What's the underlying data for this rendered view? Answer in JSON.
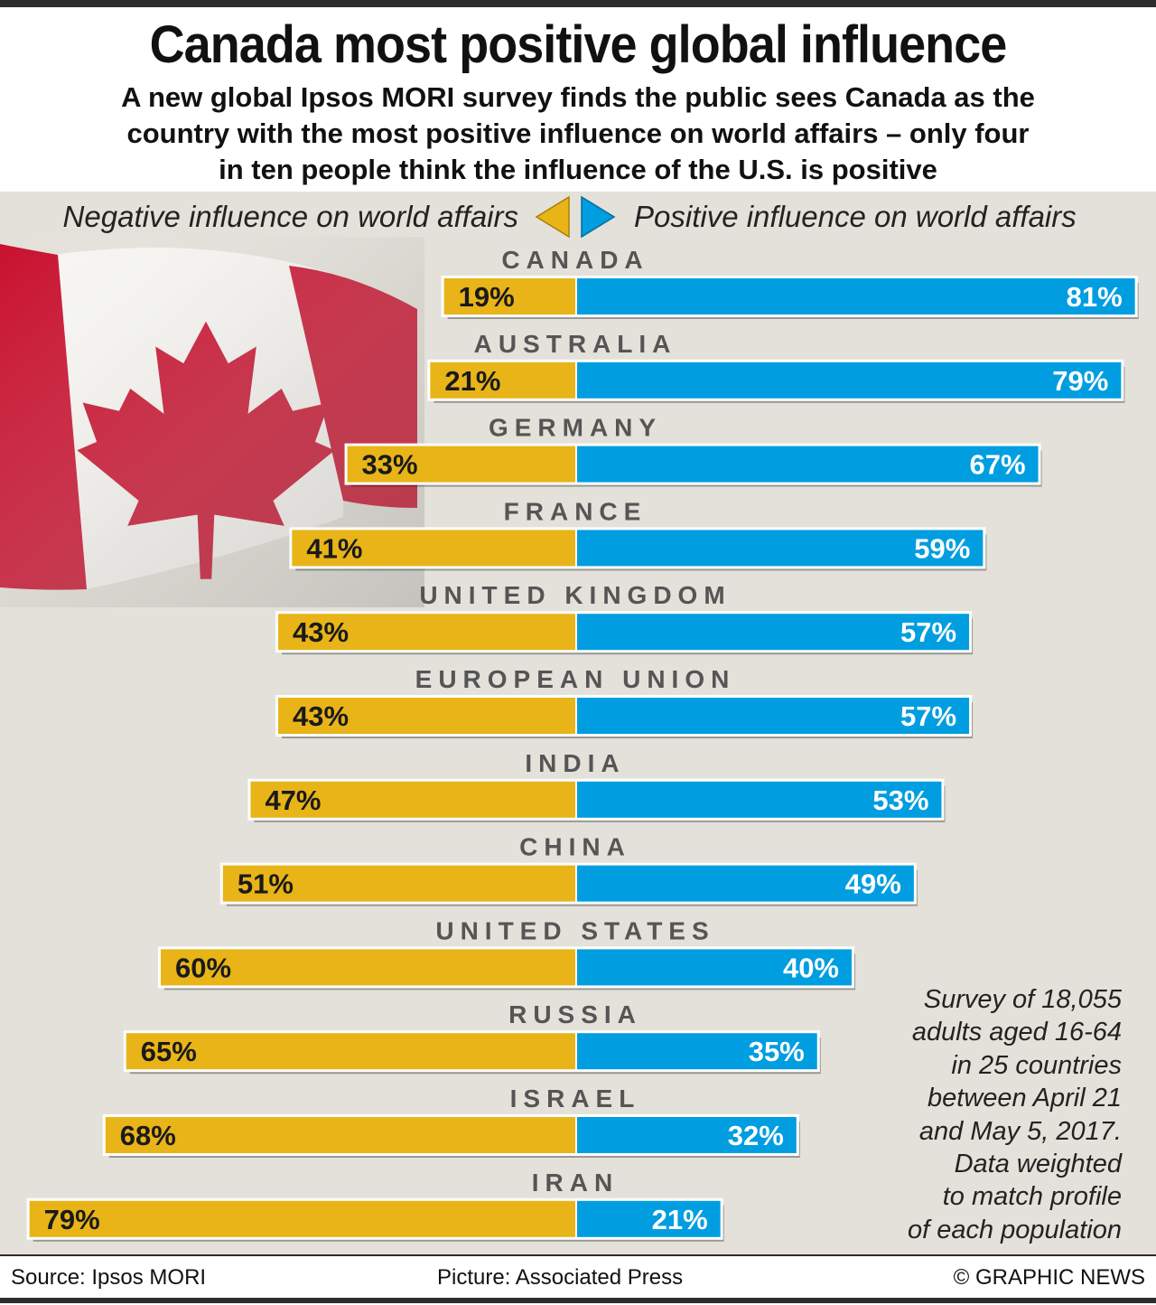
{
  "header": {
    "title": "Canada most positive global influence",
    "subtitle_lines": [
      "A new global Ipsos MORI survey finds the public sees Canada as the",
      "country with the most positive influence on world affairs – only four",
      "in ten people think the influence of the U.S. is positive"
    ]
  },
  "legend": {
    "negative": "Negative influence on world affairs",
    "positive": "Positive influence on world affairs"
  },
  "note_lines": [
    "Survey of 18,055",
    "adults aged 16-64",
    "in 25 countries",
    "between April 21",
    "and May 5, 2017.",
    "Data weighted",
    "to match profile",
    "of each population"
  ],
  "footer": {
    "source": "Source: Ipsos MORI",
    "picture": "Picture: Associated Press",
    "copyright": "© GRAPHIC NEWS"
  },
  "colors": {
    "negative": "#e8b418",
    "positive": "#009ee0",
    "panel": "#e3e1da",
    "country_label": "#555555",
    "flag_red": "#c8102e"
  },
  "chart_data": {
    "type": "bar",
    "orientation": "horizontal diverging",
    "categories": [
      "CANADA",
      "AUSTRALIA",
      "GERMANY",
      "FRANCE",
      "UNITED KINGDOM",
      "EUROPEAN UNION",
      "INDIA",
      "CHINA",
      "UNITED STATES",
      "RUSSIA",
      "ISRAEL",
      "IRAN"
    ],
    "series": [
      {
        "name": "Negative influence on world affairs",
        "values": [
          19,
          21,
          33,
          41,
          43,
          43,
          47,
          51,
          60,
          65,
          68,
          79
        ],
        "labels": [
          "19%",
          "21%",
          "33%",
          "41%",
          "43%",
          "43%",
          "47%",
          "51%",
          "60%",
          "65%",
          "68%",
          "79%"
        ]
      },
      {
        "name": "Positive influence on world affairs",
        "values": [
          81,
          79,
          67,
          59,
          57,
          57,
          53,
          49,
          40,
          35,
          32,
          21
        ],
        "labels": [
          "81%",
          "79%",
          "67%",
          "59%",
          "57%",
          "57%",
          "53%",
          "49%",
          "40%",
          "35%",
          "32%",
          "21%"
        ]
      }
    ],
    "unit": "%",
    "grid": false,
    "legend_position": "top"
  }
}
